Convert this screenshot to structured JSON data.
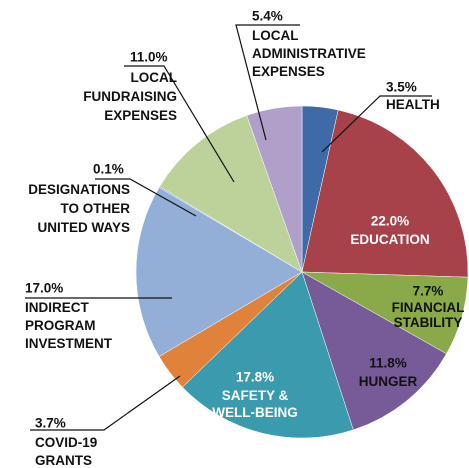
{
  "chart_data": {
    "type": "pie",
    "categories": [
      "HEALTH",
      "EDUCATION",
      "FINANCIAL\nSTABILITY",
      "HUNGER",
      "SAFETY &\nWELL-BEING",
      "COVID-19\nGRANTS",
      "INDIRECT\nPROGRAM\nINVESTMENT",
      "DESIGNATIONS\nTO OTHER\nUNITED WAYS",
      "LOCAL\nFUNDRAISING\nEXPENSES",
      "LOCAL\nADMINISTRATIVE\nEXPENSES"
    ],
    "values": [
      3.5,
      22.0,
      7.7,
      11.8,
      17.8,
      3.7,
      17.0,
      0.1,
      11.0,
      5.4
    ],
    "value_labels": [
      "3.5%",
      "22.0%",
      "7.7%",
      "11.8%",
      "17.8%",
      "3.7%",
      "17.0%",
      "0.1%",
      "11.0%",
      "5.4%"
    ],
    "colors": [
      "#3f6aa8",
      "#a8424a",
      "#8aaa4a",
      "#775a98",
      "#3a9aae",
      "#e0823a",
      "#93afd8",
      "#6f8fbf",
      "#bcd29a",
      "#b09fc8"
    ]
  }
}
